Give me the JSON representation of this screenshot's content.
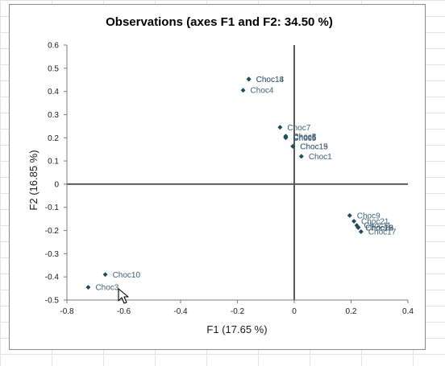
{
  "chart_data": {
    "type": "scatter",
    "title": "Observations (axes F1 and F2: 34.50 %)",
    "xlabel": "F1 (17.65 %)",
    "ylabel": "F2 (16.85 %)",
    "xlim": [
      -0.8,
      0.4
    ],
    "ylim": [
      -0.5,
      0.6
    ],
    "x_ticks": [
      "-0.8",
      "-0.6",
      "-0.4",
      "-0.2",
      "0",
      "0.2",
      "0.4"
    ],
    "y_ticks": [
      "0.6",
      "0.5",
      "0.4",
      "0.3",
      "0.2",
      "0.1",
      "0",
      "-0.1",
      "-0.2",
      "-0.3",
      "-0.4",
      "-0.5"
    ],
    "grid": false,
    "legend": "none",
    "marker_color": "#1f4e5f",
    "label_color": "#3f5f76",
    "points": [
      {
        "x": -0.16,
        "y": 0.453,
        "label": "Choc18"
      },
      {
        "x": -0.16,
        "y": 0.453,
        "label": "Choc14"
      },
      {
        "x": -0.18,
        "y": 0.405,
        "label": "Choc4"
      },
      {
        "x": -0.05,
        "y": 0.245,
        "label": "Choc7"
      },
      {
        "x": -0.03,
        "y": 0.207,
        "label": "Choc8"
      },
      {
        "x": -0.03,
        "y": 0.203,
        "label": "Choc6"
      },
      {
        "x": -0.03,
        "y": 0.2,
        "label": "Choc5"
      },
      {
        "x": -0.005,
        "y": 0.163,
        "label": "Choc19"
      },
      {
        "x": -0.005,
        "y": 0.163,
        "label": "Choc15"
      },
      {
        "x": 0.025,
        "y": 0.12,
        "label": "Choc1"
      },
      {
        "x": 0.195,
        "y": -0.135,
        "label": "Choc9"
      },
      {
        "x": 0.21,
        "y": -0.16,
        "label": "Choc21"
      },
      {
        "x": 0.22,
        "y": -0.178,
        "label": "Choc11"
      },
      {
        "x": 0.225,
        "y": -0.187,
        "label": "Choc20"
      },
      {
        "x": 0.225,
        "y": -0.187,
        "label": "Choc16"
      },
      {
        "x": 0.225,
        "y": -0.187,
        "label": "Choc13"
      },
      {
        "x": 0.225,
        "y": -0.187,
        "label": "Choc12"
      },
      {
        "x": 0.235,
        "y": -0.205,
        "label": "Choc17"
      },
      {
        "x": -0.665,
        "y": -0.39,
        "label": "Choc10"
      },
      {
        "x": -0.725,
        "y": -0.445,
        "label": "Choc3"
      }
    ]
  }
}
